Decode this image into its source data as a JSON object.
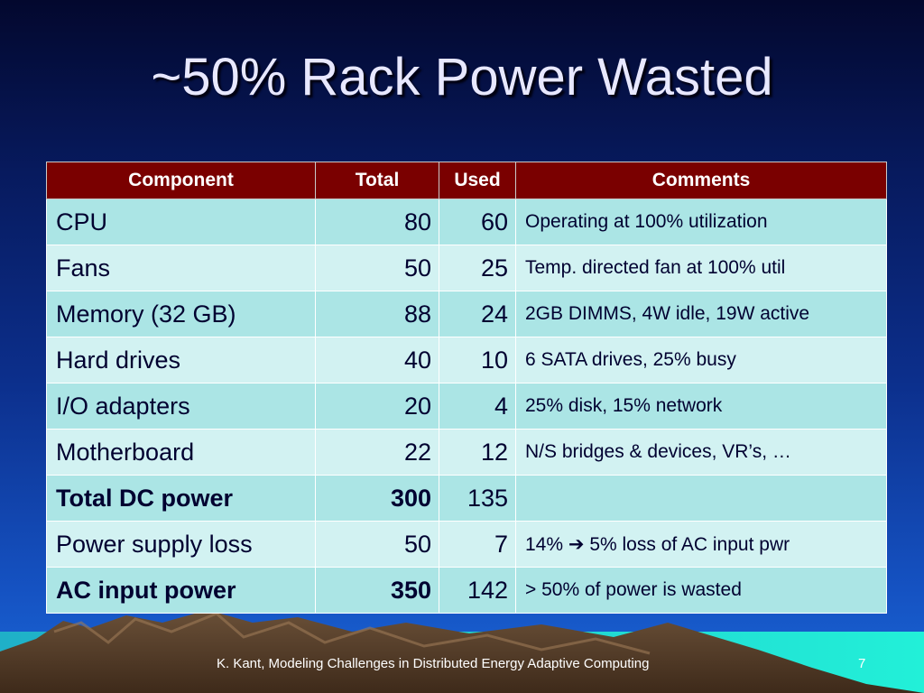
{
  "slide": {
    "title": "~50% Rack Power Wasted",
    "footer": "K. Kant, Modeling Challenges in Distributed Energy Adaptive Computing",
    "page_number": "7"
  },
  "table": {
    "headers": [
      "Component",
      "Total",
      "Used",
      "Comments"
    ],
    "rows": [
      {
        "component": "CPU",
        "total": "80",
        "used": "60",
        "comment": "Operating at 100% utilization"
      },
      {
        "component": "Fans",
        "total": "50",
        "used": "25",
        "comment": "Temp. directed fan at 100% util"
      },
      {
        "component": "Memory (32 GB)",
        "total": "88",
        "used": "24",
        "comment": "2GB DIMMS, 4W idle, 19W active"
      },
      {
        "component": "Hard drives",
        "total": "40",
        "used": "10",
        "comment": "6 SATA drives, 25% busy"
      },
      {
        "component": "I/O adapters",
        "total": "20",
        "used": "4",
        "comment": "25% disk, 15% network"
      },
      {
        "component": "Motherboard",
        "total": "22",
        "used": "12",
        "comment": "N/S bridges & devices, VR’s, …"
      },
      {
        "component": "Total DC power",
        "total": "300",
        "used": "135",
        "comment": ""
      },
      {
        "component": "Power supply loss",
        "total": "50",
        "used": "7",
        "comment_before": "14%",
        "comment_arrow": "➔",
        "comment_after": "5% loss of AC input pwr"
      },
      {
        "component": "AC input power",
        "total": "350",
        "used": "142",
        "comment": "> 50% of power is wasted"
      }
    ]
  },
  "colors": {
    "header_bg": "#7a0000",
    "row_odd": "#abe5e5",
    "row_even": "#d2f2f2"
  }
}
